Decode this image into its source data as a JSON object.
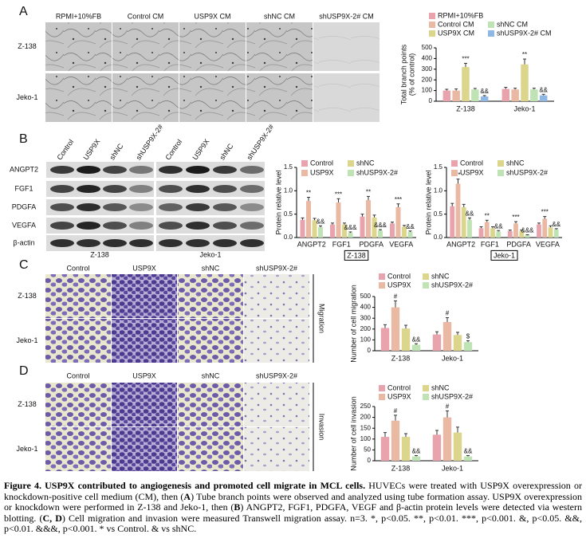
{
  "figure": {
    "panel_labels": [
      "A",
      "B",
      "C",
      "D"
    ],
    "tube": {
      "columns": [
        "RPMI+10%FB",
        "Control CM",
        "USP9X CM",
        "shNC CM",
        "shUSP9X-2# CM"
      ],
      "rows": [
        "Z-138",
        "Jeko-1"
      ]
    },
    "blot": {
      "lanes": [
        "Control",
        "USP9X",
        "shNC",
        "shUSP9X-2#",
        "Control",
        "USP9X",
        "shNC",
        "shUSP9X-2#"
      ],
      "proteins": [
        "ANGPT2",
        "FGF1",
        "PDGFA",
        "VEGFA",
        "β-actin"
      ],
      "cell_lines": [
        "Z-138",
        "Jeko-1"
      ]
    },
    "migration": {
      "columns": [
        "Control",
        "USP9X",
        "shNC",
        "shUSP9X-2#"
      ],
      "rows": [
        "Z-138",
        "Jeko-1"
      ],
      "side_label": "Migration"
    },
    "invasion": {
      "columns": [
        "Control",
        "USP9X",
        "shNC",
        "shUSP9X-2#"
      ],
      "rows": [
        "Z-138",
        "Jeko-1"
      ],
      "side_label": "Invasion"
    }
  },
  "chart_data": [
    {
      "type": "bar",
      "ylabel": [
        "Total branch points",
        "(% of control)"
      ],
      "categories": [
        "Z-138",
        "Jeko-1"
      ],
      "ylim": [
        0,
        500
      ],
      "yticks": [
        0,
        100,
        200,
        300,
        400,
        500
      ],
      "series": [
        {
          "name": "RPMI+10%FB",
          "color": "#e8a3ad",
          "values": [
            100,
            115
          ],
          "errors": [
            12,
            15
          ]
        },
        {
          "name": "Control CM",
          "color": "#e9b9a3",
          "values": [
            100,
            110
          ],
          "errors": [
            15,
            12
          ]
        },
        {
          "name": "USP9X CM",
          "color": "#dcd58c",
          "values": [
            320,
            345
          ],
          "errors": [
            35,
            50
          ],
          "annotations": [
            "***",
            "**"
          ]
        },
        {
          "name": "shNC CM",
          "color": "#bfe3b4",
          "values": [
            110,
            110
          ],
          "errors": [
            10,
            12
          ]
        },
        {
          "name": "shUSP9X-2# CM",
          "color": "#8fb7e3",
          "values": [
            45,
            55
          ],
          "errors": [
            8,
            10
          ],
          "annotations": [
            "&&",
            "&&"
          ]
        }
      ]
    },
    {
      "type": "bar",
      "ylabel": "Protein relative level",
      "xlabel": "Z-138",
      "categories": [
        "ANGPT2",
        "FGF1",
        "PDGFA",
        "VEGFA"
      ],
      "ylim": [
        0,
        1.5
      ],
      "yticks": [
        {
          "value": 0,
          "label": "0.0"
        },
        0.5,
        {
          "value": 1,
          "label": "1.0"
        },
        1.5
      ],
      "series": [
        {
          "name": "Control",
          "color": "#e8a3ad",
          "values": [
            0.38,
            0.28,
            0.45,
            0.3
          ],
          "errors": [
            0.04,
            0.03,
            0.05,
            0.03
          ]
        },
        {
          "name": "USP9X",
          "color": "#e9b9a3",
          "values": [
            0.78,
            0.75,
            0.8,
            0.65
          ],
          "errors": [
            0.08,
            0.08,
            0.08,
            0.07
          ],
          "annotations": [
            "**",
            "***",
            "**",
            "***"
          ]
        },
        {
          "name": "shNC",
          "color": "#dcd58c",
          "values": [
            0.37,
            0.28,
            0.43,
            0.23
          ],
          "errors": [
            0.04,
            0.03,
            0.05,
            0.03
          ]
        },
        {
          "name": "shUSP9X-2#",
          "color": "#bfe3b4",
          "values": [
            0.22,
            0.1,
            0.15,
            0.12
          ],
          "errors": [
            0.03,
            0.02,
            0.02,
            0.02
          ],
          "annotations": [
            "&&",
            "&&&",
            "&&&",
            "&&"
          ]
        }
      ]
    },
    {
      "type": "bar",
      "ylabel": "Protein relative level",
      "xlabel": "Jeko-1",
      "categories": [
        "ANGPT2",
        "FGF1",
        "PDGFA",
        "VEGFA"
      ],
      "ylim": [
        0,
        1.5
      ],
      "yticks": [
        {
          "value": 0,
          "label": "0.0"
        },
        0.5,
        {
          "value": 1,
          "label": "1.0"
        },
        1.5
      ],
      "series": [
        {
          "name": "Control",
          "color": "#e8a3ad",
          "values": [
            0.67,
            0.2,
            0.14,
            0.28
          ],
          "errors": [
            0.06,
            0.03,
            0.02,
            0.03
          ]
        },
        {
          "name": "USP9X",
          "color": "#e9b9a3",
          "values": [
            1.15,
            0.33,
            0.3,
            0.4
          ],
          "errors": [
            0.1,
            0.04,
            0.04,
            0.05
          ],
          "annotations": [
            "**",
            "**",
            "***",
            "***"
          ]
        },
        {
          "name": "shNC",
          "color": "#dcd58c",
          "values": [
            0.65,
            0.2,
            0.14,
            0.22
          ],
          "errors": [
            0.06,
            0.03,
            0.02,
            0.03
          ]
        },
        {
          "name": "shUSP9X-2#",
          "color": "#bfe3b4",
          "values": [
            0.38,
            0.13,
            0.05,
            0.17
          ],
          "errors": [
            0.04,
            0.02,
            0.01,
            0.02
          ],
          "annotations": [
            "&&",
            "&&",
            "&&&",
            "&&"
          ]
        }
      ]
    },
    {
      "type": "bar",
      "ylabel": "Number of cell migration",
      "categories": [
        "Z-138",
        "Jeko-1"
      ],
      "ylim": [
        0,
        500
      ],
      "yticks": [
        0,
        100,
        200,
        300,
        400,
        500
      ],
      "series": [
        {
          "name": "Control",
          "color": "#e8a3ad",
          "values": [
            210,
            150
          ],
          "errors": [
            30,
            25
          ]
        },
        {
          "name": "USP9X",
          "color": "#e9b9a3",
          "values": [
            400,
            265
          ],
          "errors": [
            60,
            40
          ],
          "annotations": [
            "#",
            "#"
          ]
        },
        {
          "name": "shNC",
          "color": "#dcd58c",
          "values": [
            205,
            145
          ],
          "errors": [
            30,
            25
          ]
        },
        {
          "name": "shUSP9X-2#",
          "color": "#bfe3b4",
          "values": [
            55,
            80
          ],
          "errors": [
            10,
            12
          ],
          "annotations": [
            "&&",
            "$"
          ]
        }
      ]
    },
    {
      "type": "bar",
      "ylabel": "Number of cell invasion",
      "categories": [
        "Z-138",
        "Jeko-1"
      ],
      "ylim": [
        0,
        250
      ],
      "yticks": [
        0,
        50,
        100,
        150,
        200,
        250
      ],
      "series": [
        {
          "name": "Control",
          "color": "#e8a3ad",
          "values": [
            110,
            120
          ],
          "errors": [
            20,
            20
          ]
        },
        {
          "name": "USP9X",
          "color": "#e9b9a3",
          "values": [
            185,
            200
          ],
          "errors": [
            25,
            30
          ],
          "annotations": [
            "#",
            "#"
          ]
        },
        {
          "name": "shNC",
          "color": "#dcd58c",
          "values": [
            110,
            130
          ],
          "errors": [
            15,
            25
          ]
        },
        {
          "name": "shUSP9X-2#",
          "color": "#bfe3b4",
          "values": [
            20,
            20
          ],
          "errors": [
            4,
            4
          ],
          "annotations": [
            "&&",
            "&&"
          ]
        }
      ]
    }
  ],
  "caption": {
    "parts": [
      "Figure 4. USP9X contributed to angiogenesis and promoted cell migrate in MCL cells.",
      "HUVECs were treated with USP9X overexpression or knockdown-positive cell medium (CM), then (",
      "A",
      ") Tube branch points were observed and analyzed using tube formation assay. USP9X overexpression or knockdown were performed in Z-138 and Jeko-1, then (",
      "B",
      ") ANGPT2, FGF1, PDGFA, VEGF and β-actin protein levels were detected via western blotting. (",
      "C, D",
      ") Cell migration and invasion were measured Transwell migration assay. n=3. *, p<0.05. **, p<0.01. ***, p<0.001. &, p<0.05. &&, p<0.01. &&&, p<0.001. * vs Control. & vs shNC."
    ]
  }
}
